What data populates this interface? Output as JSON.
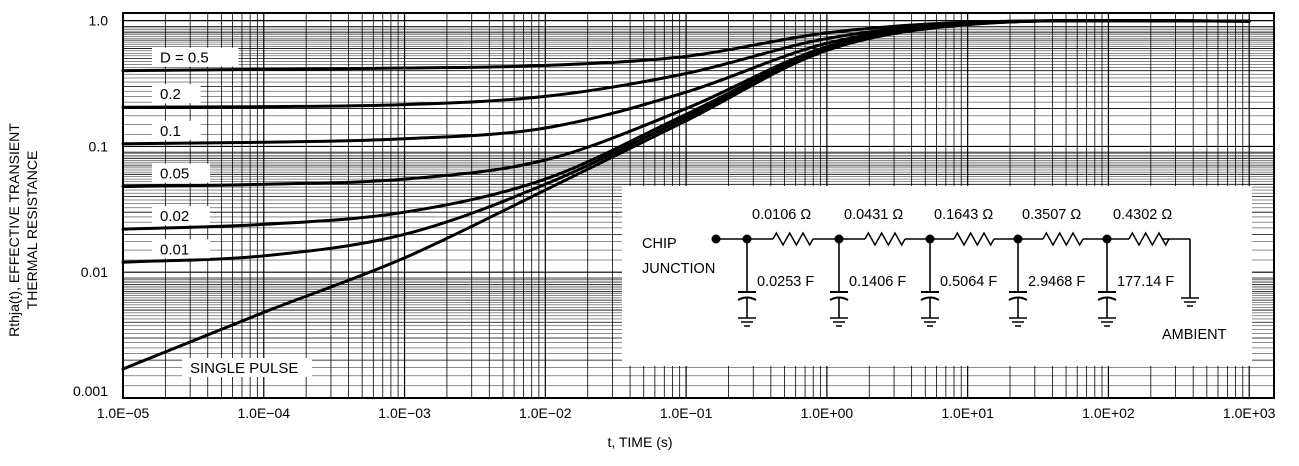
{
  "chart_data": {
    "type": "line",
    "xlabel": "t, TIME (s)",
    "ylabel_lines": [
      "Rthja(t), EFFECTIVE TRANSIENT",
      "THERMAL RESISTANCE"
    ],
    "x_scale": "log",
    "y_scale": "log",
    "xlim": [
      1e-05,
      1500
    ],
    "ylim": [
      0.001,
      1.15
    ],
    "grid": true,
    "x_tick_values": [
      1e-05,
      0.0001,
      0.001,
      0.01,
      0.1,
      1,
      10,
      100,
      1000
    ],
    "x_tick_labels": [
      "1.0E−05",
      "1.0E−04",
      "1.0E−03",
      "1.0E−02",
      "1.0E−01",
      "1.0E+00",
      "1.0E+01",
      "1.0E+02",
      "1.0E+03"
    ],
    "y_tick_values": [
      0.001,
      0.01,
      0.1,
      1
    ],
    "y_tick_labels": [
      "0.001",
      "0.01",
      "0.1",
      "1.0"
    ],
    "series": [
      {
        "name": "D = 0.5",
        "x": [
          1e-05,
          0.0001,
          0.001,
          0.01,
          0.1,
          1,
          10,
          100,
          1000
        ],
        "y": [
          0.4,
          0.41,
          0.42,
          0.44,
          0.52,
          0.8,
          0.97,
          1.0,
          0.99
        ]
      },
      {
        "name": "0.2",
        "x": [
          1e-05,
          0.0001,
          0.001,
          0.01,
          0.1,
          1,
          10,
          100,
          1000
        ],
        "y": [
          0.205,
          0.207,
          0.215,
          0.25,
          0.38,
          0.72,
          0.96,
          1.0,
          0.99
        ]
      },
      {
        "name": "0.1",
        "x": [
          1e-05,
          0.0001,
          0.001,
          0.01,
          0.1,
          1,
          10,
          100,
          1000
        ],
        "y": [
          0.105,
          0.108,
          0.115,
          0.14,
          0.27,
          0.66,
          0.95,
          1.0,
          0.99
        ]
      },
      {
        "name": "0.05",
        "x": [
          1e-05,
          0.0001,
          0.001,
          0.01,
          0.1,
          1,
          10,
          100,
          1000
        ],
        "y": [
          0.048,
          0.05,
          0.055,
          0.078,
          0.2,
          0.62,
          0.94,
          1.0,
          0.99
        ]
      },
      {
        "name": "0.02",
        "x": [
          1e-05,
          0.0001,
          0.001,
          0.01,
          0.1,
          1,
          10,
          100,
          1000
        ],
        "y": [
          0.022,
          0.024,
          0.03,
          0.055,
          0.18,
          0.6,
          0.94,
          1.0,
          0.99
        ]
      },
      {
        "name": "0.01",
        "x": [
          1e-05,
          0.0001,
          0.001,
          0.01,
          0.1,
          1,
          10,
          100,
          1000
        ],
        "y": [
          0.012,
          0.0135,
          0.02,
          0.05,
          0.17,
          0.6,
          0.94,
          1.0,
          0.99
        ]
      },
      {
        "name": "SINGLE PULSE",
        "x": [
          1e-05,
          0.0001,
          0.001,
          0.01,
          0.1,
          1,
          10,
          100,
          1000
        ],
        "y": [
          0.0017,
          0.0048,
          0.013,
          0.045,
          0.16,
          0.58,
          0.93,
          1.0,
          0.99
        ]
      }
    ]
  },
  "circuit": {
    "left_label_1": "CHIP",
    "left_label_2": "JUNCTION",
    "right_label": "AMBIENT",
    "resistors": [
      "0.0106 Ω",
      "0.0431 Ω",
      "0.1643 Ω",
      "0.3507 Ω",
      "0.4302 Ω"
    ],
    "capacitors": [
      "0.0253 F",
      "0.1406 F",
      "0.5064 F",
      "2.9468 F",
      "177.14 F"
    ]
  }
}
